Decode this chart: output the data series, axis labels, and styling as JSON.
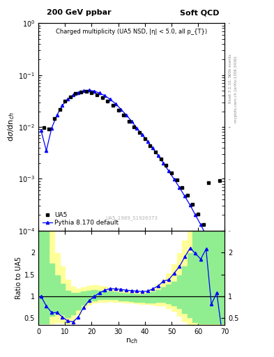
{
  "title_left": "200 GeV ppbar",
  "title_right": "Soft QCD",
  "plot_title": "Charged multiplicity (UA5 NSD, |\\u03b7| < 5.0, all p_{T})",
  "ylabel_main": "d\\u03c3/dn_{ch}",
  "ylabel_ratio": "Ratio to UA5",
  "xlabel": "n_{ch}",
  "right_label1": "Rivet 3.1.10, 500k events",
  "right_label2": "mcplots.cern.ch [arXiv:1306.3436]",
  "watermark": "UA5_1989_S1926373",
  "legend_UA5": "UA5",
  "legend_pythia": "Pythia 8.170 default",
  "ua5_x": [
    2,
    4,
    6,
    8,
    10,
    12,
    14,
    16,
    18,
    20,
    22,
    24,
    26,
    28,
    30,
    32,
    34,
    36,
    38,
    40,
    42,
    44,
    46,
    48,
    50,
    52,
    54,
    56,
    58,
    60,
    62,
    64,
    68
  ],
  "ua5_y": [
    0.0098,
    0.0092,
    0.0145,
    0.022,
    0.031,
    0.038,
    0.044,
    0.047,
    0.048,
    0.046,
    0.042,
    0.037,
    0.031,
    0.026,
    0.021,
    0.017,
    0.013,
    0.01,
    0.0078,
    0.0059,
    0.0044,
    0.0033,
    0.0024,
    0.0018,
    0.0013,
    0.00095,
    0.00068,
    0.00048,
    0.00032,
    0.00021,
    0.00013,
    0.00085,
    0.00092
  ],
  "pythia_x": [
    1,
    3,
    5,
    7,
    9,
    11,
    13,
    15,
    17,
    19,
    21,
    23,
    25,
    27,
    29,
    31,
    33,
    35,
    37,
    39,
    41,
    43,
    45,
    47,
    49,
    51,
    53,
    55,
    57,
    59,
    61,
    63,
    65,
    67,
    69
  ],
  "pythia_y": [
    0.0085,
    0.0035,
    0.0095,
    0.017,
    0.026,
    0.034,
    0.041,
    0.046,
    0.05,
    0.051,
    0.049,
    0.045,
    0.04,
    0.034,
    0.028,
    0.022,
    0.017,
    0.013,
    0.0095,
    0.0072,
    0.0053,
    0.0039,
    0.0028,
    0.002,
    0.0014,
    0.00098,
    0.00068,
    0.00046,
    0.00031,
    0.0002,
    0.00013,
    8.2e-05,
    5e-05,
    2.8e-05,
    1.2e-05
  ],
  "ratio_x": [
    1,
    3,
    5,
    7,
    9,
    11,
    13,
    15,
    17,
    19,
    21,
    23,
    25,
    27,
    29,
    31,
    33,
    35,
    37,
    39,
    41,
    43,
    45,
    47,
    49,
    51,
    53,
    55,
    57,
    59,
    61,
    63,
    65,
    67,
    69
  ],
  "ratio_y": [
    1.0,
    0.78,
    0.63,
    0.63,
    0.53,
    0.44,
    0.42,
    0.53,
    0.75,
    0.9,
    1.0,
    1.08,
    1.14,
    1.18,
    1.17,
    1.16,
    1.14,
    1.13,
    1.12,
    1.11,
    1.12,
    1.17,
    1.24,
    1.35,
    1.38,
    1.53,
    1.68,
    1.9,
    2.1,
    1.98,
    1.85,
    2.08,
    0.82,
    1.08,
    0.18
  ],
  "green_band_x": [
    0,
    2,
    4,
    6,
    8,
    10,
    12,
    14,
    16,
    18,
    20,
    22,
    24,
    26,
    28,
    30,
    32,
    34,
    36,
    38,
    40,
    42,
    44,
    46,
    48,
    50,
    52,
    54,
    56,
    58,
    60,
    62,
    64,
    66,
    68,
    70
  ],
  "green_band_lo": [
    0.38,
    0.38,
    0.55,
    0.62,
    0.58,
    0.52,
    0.58,
    0.7,
    0.81,
    0.87,
    0.91,
    0.93,
    0.93,
    0.93,
    0.93,
    0.91,
    0.9,
    0.89,
    0.88,
    0.87,
    0.86,
    0.86,
    0.87,
    0.87,
    0.84,
    0.79,
    0.73,
    0.62,
    0.52,
    0.42,
    0.38,
    0.38,
    0.38,
    0.38,
    0.38,
    0.38
  ],
  "green_band_hi": [
    2.5,
    2.5,
    1.75,
    1.48,
    1.28,
    1.13,
    1.08,
    1.08,
    1.11,
    1.13,
    1.14,
    1.13,
    1.12,
    1.11,
    1.09,
    1.08,
    1.07,
    1.06,
    1.05,
    1.05,
    1.06,
    1.09,
    1.14,
    1.21,
    1.27,
    1.33,
    1.48,
    1.68,
    1.98,
    2.5,
    2.5,
    2.5,
    2.5,
    2.5,
    2.5,
    2.5
  ],
  "yellow_band_lo": [
    0.38,
    0.38,
    0.38,
    0.42,
    0.4,
    0.38,
    0.43,
    0.58,
    0.73,
    0.81,
    0.85,
    0.87,
    0.88,
    0.89,
    0.88,
    0.87,
    0.86,
    0.85,
    0.84,
    0.83,
    0.82,
    0.81,
    0.8,
    0.79,
    0.73,
    0.66,
    0.56,
    0.43,
    0.33,
    0.3,
    0.3,
    0.3,
    0.3,
    0.3,
    0.3,
    0.3
  ],
  "yellow_band_hi": [
    2.5,
    2.5,
    2.5,
    1.98,
    1.68,
    1.38,
    1.23,
    1.18,
    1.21,
    1.24,
    1.26,
    1.24,
    1.22,
    1.19,
    1.17,
    1.14,
    1.12,
    1.11,
    1.1,
    1.09,
    1.11,
    1.17,
    1.27,
    1.39,
    1.53,
    1.73,
    1.98,
    2.28,
    2.5,
    2.5,
    2.5,
    2.5,
    2.5,
    2.5,
    2.5,
    2.5
  ],
  "ua5_color": "black",
  "pythia_color": "blue",
  "green_color": "#90EE90",
  "yellow_color": "#FFFF99",
  "bg_color": "white",
  "ylim_main": [
    0.0001,
    1.0
  ],
  "ylim_ratio": [
    0.35,
    2.5
  ],
  "xlim": [
    0,
    70
  ]
}
